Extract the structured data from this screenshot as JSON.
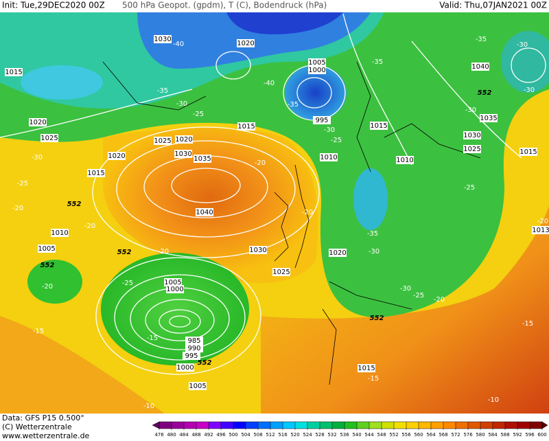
{
  "header": {
    "init": "Init: Tue,29DEC2020 00Z",
    "description": "500 hPa Geopot. (gpdm), T (C), Bodendruck (hPa)",
    "valid": "Valid: Thu,07JAN2021 00Z"
  },
  "footer": {
    "data": "Data: GFS P15 0.500°",
    "copyright": "(C) Wetterzentrale",
    "url": "www.wetterzentrale.de"
  },
  "pressure_labels": [
    "1030",
    "1020",
    "1015",
    "1005",
    "1000",
    "1040",
    "1020",
    "1025",
    "1015",
    "1025",
    "1020",
    "1030",
    "1035",
    "1020",
    "1015",
    "995",
    "1015",
    "1010",
    "1010",
    "1030",
    "1035",
    "1025",
    "1015",
    "1040",
    "1010",
    "1005",
    "1030",
    "1025",
    "1020",
    "1005",
    "1000",
    "985",
    "990",
    "995",
    "1000",
    "1005",
    "1015",
    "1013"
  ],
  "temperature_labels": [
    "-40",
    "-35",
    "-30",
    "-25",
    "-40",
    "-35",
    "-30",
    "-25",
    "-35",
    "-35",
    "-30",
    "-30",
    "-30",
    "-20",
    "-30",
    "-25",
    "-20",
    "-20",
    "-20",
    "-25",
    "-20",
    "-35",
    "-30",
    "-30",
    "-25",
    "-20",
    "-20",
    "-20",
    "-25",
    "-15",
    "-15",
    "-15",
    "-15",
    "-10",
    "-10"
  ],
  "thickness_labels": [
    "552",
    "552",
    "552",
    "552",
    "552",
    "552"
  ],
  "colorbar": {
    "ticks": [
      476,
      480,
      484,
      488,
      492,
      496,
      500,
      504,
      508,
      512,
      516,
      520,
      524,
      528,
      532,
      536,
      540,
      544,
      548,
      552,
      556,
      560,
      564,
      568,
      572,
      576,
      580,
      584,
      588,
      592,
      596,
      600
    ],
    "colors": [
      "#660066",
      "#7f007f",
      "#99009a",
      "#b200b2",
      "#c800c8",
      "#8000ff",
      "#4000ff",
      "#0000ff",
      "#0040ff",
      "#0070ff",
      "#00a0ff",
      "#00c8ff",
      "#00e0e0",
      "#00d0a0",
      "#00c070",
      "#00b040",
      "#20c020",
      "#60d020",
      "#a0e020",
      "#d0e000",
      "#f0e000",
      "#ffd000",
      "#ffb800",
      "#ffa000",
      "#ff8800",
      "#f07000",
      "#e05800",
      "#d04000",
      "#c02800",
      "#b01000",
      "#a00000",
      "#800000",
      "#600000"
    ]
  }
}
